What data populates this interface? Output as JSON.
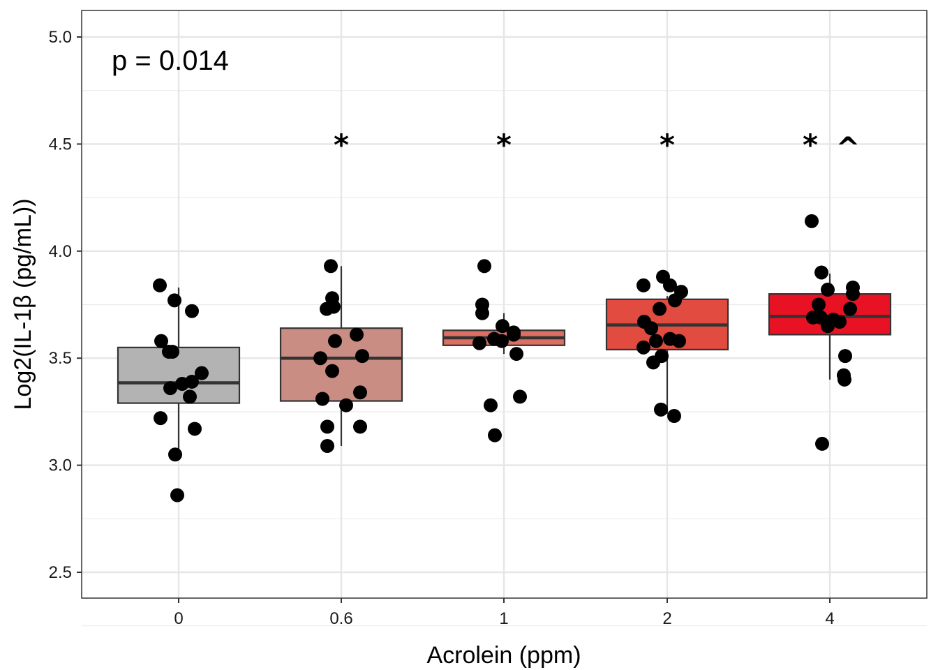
{
  "chart_data": {
    "type": "boxplot",
    "title": "",
    "xlabel": "Acrolein (ppm)",
    "ylabel": "Log2(IL-1β  (pg/mL))",
    "ylim": [
      2.37,
      5.12
    ],
    "yticks": [
      2.5,
      3.0,
      3.5,
      4.0,
      4.5,
      5.0
    ],
    "ytick_labels": [
      "2.5",
      "3.0",
      "3.5",
      "4.0",
      "4.5",
      "5.0"
    ],
    "grid": true,
    "annotation": "p = 0.014",
    "categories": [
      "0",
      "0.6",
      "1",
      "2",
      "4"
    ],
    "groups": [
      {
        "label": "0",
        "fill": "#b3b3b3",
        "significance": "",
        "whisker_low": 3.06,
        "q1": 3.29,
        "median": 3.385,
        "q3": 3.55,
        "whisker_high": 3.83,
        "points": [
          3.84,
          3.77,
          3.72,
          3.58,
          3.53,
          3.53,
          3.43,
          3.36,
          3.38,
          3.39,
          3.32,
          3.22,
          3.17,
          3.05,
          2.86
        ]
      },
      {
        "label": "0.6",
        "fill": "#c98d84",
        "significance": "*",
        "whisker_low": 3.09,
        "q1": 3.3,
        "median": 3.5,
        "q3": 3.64,
        "whisker_high": 3.93,
        "points": [
          3.93,
          3.78,
          3.74,
          3.73,
          3.58,
          3.61,
          3.5,
          3.51,
          3.44,
          3.31,
          3.34,
          3.28,
          3.18,
          3.18,
          3.09
        ]
      },
      {
        "label": "1",
        "fill": "#dd6e62",
        "significance": "*",
        "whisker_low": 3.52,
        "q1": 3.56,
        "median": 3.595,
        "q3": 3.63,
        "whisker_high": 3.71,
        "points": [
          3.93,
          3.75,
          3.71,
          3.65,
          3.62,
          3.57,
          3.59,
          3.58,
          3.61,
          3.52,
          3.32,
          3.28,
          3.14
        ]
      },
      {
        "label": "2",
        "fill": "#e24b40",
        "significance": "*",
        "whisker_low": 3.24,
        "q1": 3.54,
        "median": 3.655,
        "q3": 3.775,
        "whisker_high": 3.79,
        "points": [
          3.84,
          3.88,
          3.84,
          3.81,
          3.77,
          3.73,
          3.67,
          3.64,
          3.55,
          3.58,
          3.59,
          3.58,
          3.51,
          3.48,
          3.26,
          3.23
        ]
      },
      {
        "label": "4",
        "fill": "#e81224",
        "significance": "* ^",
        "whisker_low": 3.4,
        "q1": 3.61,
        "median": 3.695,
        "q3": 3.8,
        "whisker_high": 3.895,
        "points": [
          4.14,
          3.9,
          3.82,
          3.83,
          3.8,
          3.75,
          3.73,
          3.69,
          3.69,
          3.68,
          3.65,
          3.67,
          3.51,
          3.42,
          3.4,
          3.1
        ]
      }
    ]
  }
}
